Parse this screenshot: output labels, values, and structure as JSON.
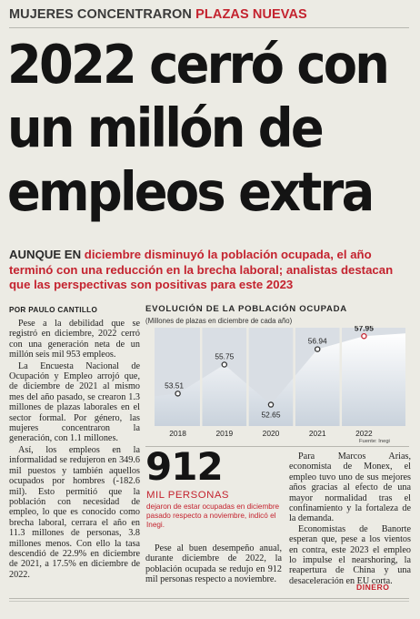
{
  "kicker": {
    "part1": "MUJERES CONCENTRARON",
    "part2": "PLAZAS NUEVAS"
  },
  "headline": {
    "line1": "2022 cerró con",
    "line2": "un millón de",
    "line3": "empleos extra"
  },
  "deck": {
    "lead": "AUNQUE EN",
    "text": " diciembre disminuyó la población ocupada, el año terminó con una reducción en la brecha laboral; analistas destacan que las perspectivas son positivas para este 2023"
  },
  "byline": "POR PAULO CANTILLO",
  "left_column": [
    "Pese a la debilidad que se registró en diciembre, 2022 cerró con una generación neta de un millón seis mil 953 empleos.",
    "La Encuesta Nacional de Ocupación y Empleo arrojó que, de diciembre de 2021 al mismo mes del año pasado, se crearon 1.3 millones de plazas laborales en el sector formal. Por género, las mujeres concentraron la generación, con 1.1 millones.",
    "Así, los empleos en la informalidad se redujeron en 349.6 mil puestos y también aquellos ocupados por hombres (-182.6 mil). Esto permitió que la población con necesidad de empleo, lo que es conocido como brecha laboral, cerrara el año en 11.3 millones de personas, 3.8 millones menos. Con ello la tasa descendió de 22.9% en diciembre de 2021, a 17.5% en diciembre de 2022."
  ],
  "chart_data": {
    "type": "area",
    "title": "EVOLUCIÓN DE LA POBLACIÓN OCUPADA",
    "subtitle": "(Millones de plazas en diciembre de cada año)",
    "source": "Fuente: Inegi",
    "x": [
      "2018",
      "2019",
      "2020",
      "2021",
      "2022"
    ],
    "values": [
      53.51,
      55.75,
      52.65,
      56.94,
      57.95
    ],
    "value_labels": [
      "53.51",
      "55.75",
      "52.65",
      "56.94",
      "57.95"
    ],
    "ylim": [
      51,
      58.6
    ],
    "colors": {
      "area_top": "#ffffff",
      "area_bottom": "#c9d2dc",
      "background": "#d9dee4",
      "highlight": "#c4232f"
    }
  },
  "highlight": {
    "number": "912",
    "label": "MIL PERSONAS",
    "caption": "dejaron de estar ocupadas en diciembre pasado respecto a noviembre, indicó el Inegi."
  },
  "middle_column": [
    "Pese al buen desempeño anual, durante diciembre de 2022, la población ocupada se redujo en 912 mil personas respecto a noviembre."
  ],
  "right_column": [
    "Para Marcos Arias, economista de Monex, el empleo tuvo uno de sus mejores años gracias al efecto de una mayor normalidad tras el confinamiento y la fortaleza de la demanda.",
    "Economistas de Banorte esperan que, pese a los vientos en contra, este 2023 el empleo lo impulse el nearshoring, la reapertura de China y una desaceleración en EU corta."
  ],
  "signature": "DINERO"
}
